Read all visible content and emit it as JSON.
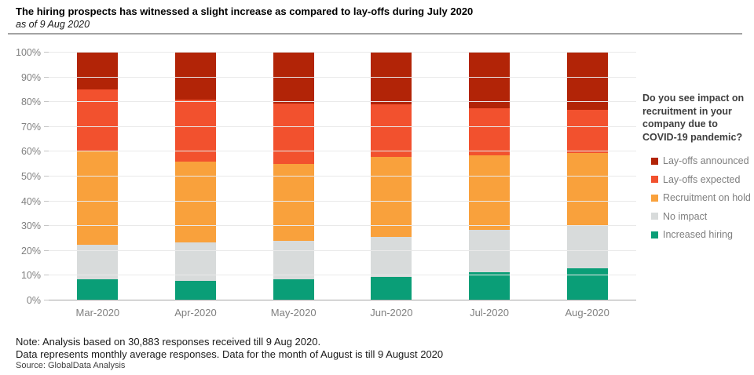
{
  "header": {
    "title": "The hiring prospects has witnessed  a slight increase as compared to lay-offs during July 2020",
    "subtitle": "as of 9 Aug 2020"
  },
  "chart_data": {
    "type": "bar",
    "stacked": true,
    "percent_stacked": true,
    "title": "The hiring prospects has witnessed  a slight increase as compared to lay-offs during July 2020",
    "subtitle": "as of 9 Aug 2020",
    "categories": [
      "Mar-2020",
      "Apr-2020",
      "May-2020",
      "Jun-2020",
      "Jul-2020",
      "Aug-2020"
    ],
    "series": [
      {
        "name": "Increased hiring",
        "color": "#0a9e77",
        "values": [
          8.5,
          8,
          8.5,
          9.5,
          11.5,
          13
        ]
      },
      {
        "name": "No impact",
        "color": "#d8dbdb",
        "values": [
          14,
          15.5,
          15.5,
          16,
          17,
          17.5
        ]
      },
      {
        "name": "Recruitment on hold",
        "color": "#f9a13c",
        "values": [
          37.5,
          32.5,
          31,
          32.5,
          30,
          29
        ]
      },
      {
        "name": "Lay-offs expected",
        "color": "#f2512e",
        "values": [
          25,
          25,
          24.5,
          21,
          19,
          17.5
        ]
      },
      {
        "name": "Lay-offs announced",
        "color": "#b22407",
        "values": [
          15,
          19,
          20.5,
          21,
          22.5,
          23
        ]
      }
    ],
    "xlabel": "",
    "ylabel": "",
    "ylim": [
      0,
      100
    ],
    "ytick_step": 10,
    "ytick_suffix": "%",
    "grid": true,
    "legend_position": "right",
    "legend_title": "Do you see impact on recruitment in your company due to COVID-19 pandemic?",
    "legend_order_top_to_bottom": [
      "Lay-offs announced",
      "Lay-offs expected",
      "Recruitment on hold",
      "No impact",
      "Increased hiring"
    ]
  },
  "footer": {
    "note_line1": "Note: Analysis based on 30,883 responses received till 9 Aug 2020.",
    "note_line2": "Data represents monthly average responses. Data for the month of August is till 9 August 2020",
    "source": "Source: GlobalData Analysis"
  }
}
